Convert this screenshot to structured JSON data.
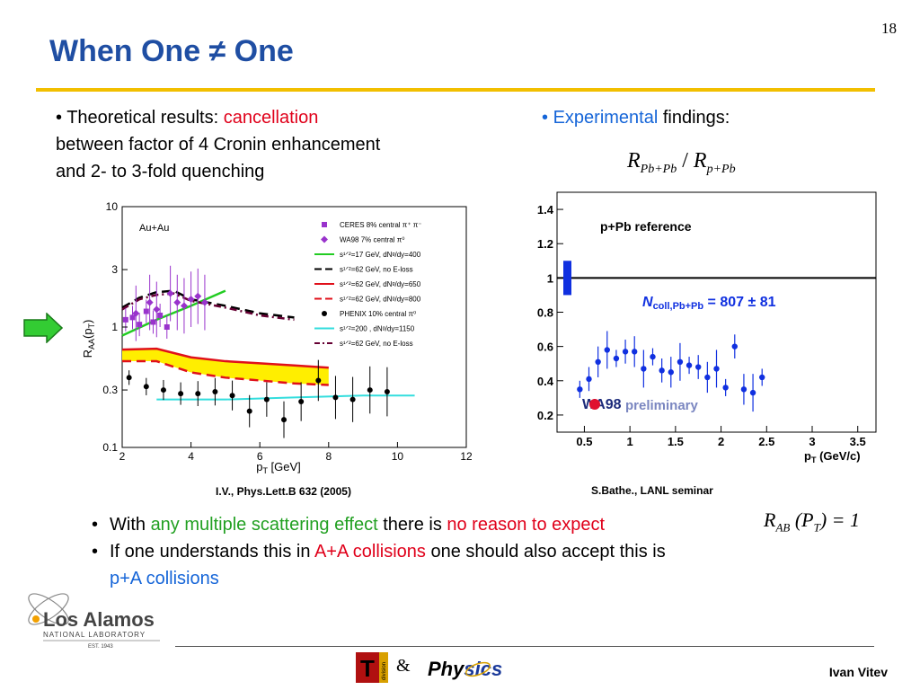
{
  "slide": {
    "title": "When One ≠ One",
    "page_number": "18",
    "author": "Ivan Vitev",
    "amp": "&"
  },
  "left_text": {
    "bullet": "•",
    "part1": "Theoretical results: ",
    "highlight": "cancellation",
    "line2": "between factor of 4 Cronin enhancement",
    "line3": "and 2- to 3-fold quenching"
  },
  "right_text": {
    "bullet": "•",
    "highlight": "Experimental",
    "rest": " findings:"
  },
  "ratio_formula": {
    "R1": "R",
    "sub1": "Pb+Pb",
    "slash": " / ",
    "R2": "R",
    "sub2": "p+Pb"
  },
  "bullets": [
    {
      "p1": "With ",
      "g1": "any multiple scattering effect",
      "p2": "  there is ",
      "r1": "no reason to expect"
    },
    {
      "p1": "If one understands this in ",
      "r1": "A+A collisions",
      "p2": " one should also accept this is",
      "b1": "p+A collisions"
    }
  ],
  "rab_formula": {
    "R": "R",
    "sub": "AB",
    "rest": " (P",
    "subT": "T",
    "end": ") = 1"
  },
  "captions": {
    "left": "I.V., Phys.Lett.B  632 (2005)",
    "right": "S.Bathe., LANL seminar"
  },
  "logos": {
    "los_alamos": {
      "line1": "Los Alamos",
      "line2": "NATIONAL LABORATORY",
      "line3": "EST. 1943"
    },
    "t_division": {
      "letter": "T",
      "side": "division"
    },
    "physics": {
      "text1": "Phy",
      "text2": "sics"
    }
  },
  "chart_data": [
    {
      "type": "line",
      "title": "",
      "xlabel": "p_T [GeV]",
      "ylabel": "R_AA(p_T)",
      "xlim": [
        2,
        12
      ],
      "ylim": [
        0.1,
        10
      ],
      "yscale": "log",
      "x_ticks": [
        2,
        4,
        6,
        8,
        10,
        12
      ],
      "y_ticks": [
        "0.1",
        "0.3",
        "1",
        "3",
        "10"
      ],
      "annotation": "Au+Au",
      "legend": [
        "CERES 8% central π⁺ π⁻",
        "WA98 7% central π⁰",
        "s¹ᐟ²=17 GeV, dNᵍ/dy=400",
        "s¹ᐟ²=62 GeV, no E-loss",
        "s¹ᐟ²=62 GeV, dNᵍ/dy=650",
        "s¹ᐟ²=62 GeV, dNᵍ/dy=800",
        "PHENIX 10% central π⁰",
        "s¹ᐟ²=200 , dNᵍ/dy=1150",
        "s¹ᐟ²=62 GeV, no E-loss"
      ],
      "series": [
        {
          "name": "CERES 8% central π⁺ π⁻",
          "color": "#9933cc",
          "x": [
            2.1,
            2.3,
            2.5,
            2.7,
            2.9,
            3.1,
            3.3
          ],
          "y": [
            1.15,
            1.2,
            1.05,
            1.35,
            1.1,
            1.25,
            1.0
          ]
        },
        {
          "name": "WA98 7% central π⁰",
          "color": "#9933cc",
          "x": [
            2.4,
            2.8,
            3.0,
            3.4,
            3.6,
            3.8,
            4.0,
            4.2,
            4.4
          ],
          "y": [
            1.3,
            1.6,
            1.4,
            1.9,
            1.6,
            1.5,
            1.7,
            1.8,
            1.6
          ]
        },
        {
          "name": "s¹ᐟ²=17 GeV, dNᵍ/dy=400",
          "color": "#22cc22",
          "x": [
            2.0,
            3.0,
            4.0,
            5.0
          ],
          "y": [
            0.85,
            1.15,
            1.5,
            2.0
          ]
        },
        {
          "name": "s¹ᐟ²=62 GeV, no E-loss",
          "color": "#000000",
          "x": [
            2.0,
            2.5,
            3.0,
            3.5,
            4.0,
            5.0,
            6.0,
            7.0
          ],
          "y": [
            1.45,
            1.75,
            1.95,
            2.0,
            1.7,
            1.5,
            1.3,
            1.2
          ]
        },
        {
          "name": "s¹ᐟ²=62 GeV, dNᵍ/dy=650",
          "color": "#e0101a",
          "x": [
            2.0,
            3.0,
            4.0,
            5.0,
            6.0,
            7.0,
            8.0
          ],
          "y": [
            0.65,
            0.66,
            0.56,
            0.52,
            0.5,
            0.48,
            0.46
          ]
        },
        {
          "name": "s¹ᐟ²=62 GeV, dNᵍ/dy=800",
          "color": "#e0101a",
          "x": [
            2.0,
            3.0,
            4.0,
            5.0,
            6.0,
            7.0,
            8.0
          ],
          "y": [
            0.52,
            0.52,
            0.42,
            0.38,
            0.36,
            0.34,
            0.33
          ]
        },
        {
          "name": "PHENIX 10% central π⁰",
          "color": "#000000",
          "x": [
            2.2,
            2.7,
            3.2,
            3.7,
            4.2,
            4.7,
            5.2,
            5.7,
            6.2,
            6.7,
            7.2,
            7.7,
            8.2,
            8.7,
            9.2,
            9.7
          ],
          "y": [
            0.38,
            0.32,
            0.3,
            0.28,
            0.28,
            0.29,
            0.27,
            0.2,
            0.25,
            0.17,
            0.24,
            0.36,
            0.26,
            0.25,
            0.3,
            0.29
          ]
        },
        {
          "name": "s¹ᐟ²=200 , dNᵍ/dy=1150",
          "color": "#33dddd",
          "x": [
            3.0,
            5.0,
            7.0,
            9.0,
            10.5
          ],
          "y": [
            0.25,
            0.25,
            0.26,
            0.27,
            0.27
          ]
        },
        {
          "name": "s¹ᐟ²=62 GeV, no E-loss",
          "color": "#660033",
          "x": [
            2.0,
            2.5,
            3.0,
            3.5,
            4.0,
            5.0,
            6.0,
            7.0
          ],
          "y": [
            1.4,
            1.7,
            1.85,
            1.9,
            1.65,
            1.45,
            1.25,
            1.15
          ]
        }
      ]
    },
    {
      "type": "scatter",
      "title": "",
      "xlabel": "p_T (GeV/c)",
      "ylabel": "",
      "xlim": [
        0.2,
        3.7
      ],
      "ylim": [
        0.1,
        1.5
      ],
      "x_ticks": [
        "0.5",
        "1",
        "1.5",
        "2",
        "2.5",
        "3",
        "3.5"
      ],
      "y_ticks": [
        "0.2",
        "0.4",
        "0.6",
        "0.8",
        "1",
        "1.2",
        "1.4"
      ],
      "reference_label": "p+Pb reference",
      "ncoll_label": "N",
      "ncoll_sub": "coll,Pb+Pb",
      "ncoll_value": " = 807 ± 81",
      "preliminary_label": "preliminary",
      "wa98_label": "WA98",
      "reference_line": 1.0,
      "series": [
        {
          "name": "data",
          "color": "#1030e0",
          "x": [
            0.45,
            0.55,
            0.65,
            0.75,
            0.85,
            0.95,
            1.05,
            1.15,
            1.25,
            1.35,
            1.45,
            1.55,
            1.65,
            1.75,
            1.85,
            1.95,
            2.05,
            2.15,
            2.25,
            2.35,
            2.45
          ],
          "y": [
            0.35,
            0.41,
            0.51,
            0.58,
            0.53,
            0.57,
            0.57,
            0.47,
            0.54,
            0.46,
            0.45,
            0.51,
            0.49,
            0.48,
            0.42,
            0.47,
            0.36,
            0.6,
            0.35,
            0.33,
            0.42
          ]
        }
      ]
    }
  ]
}
